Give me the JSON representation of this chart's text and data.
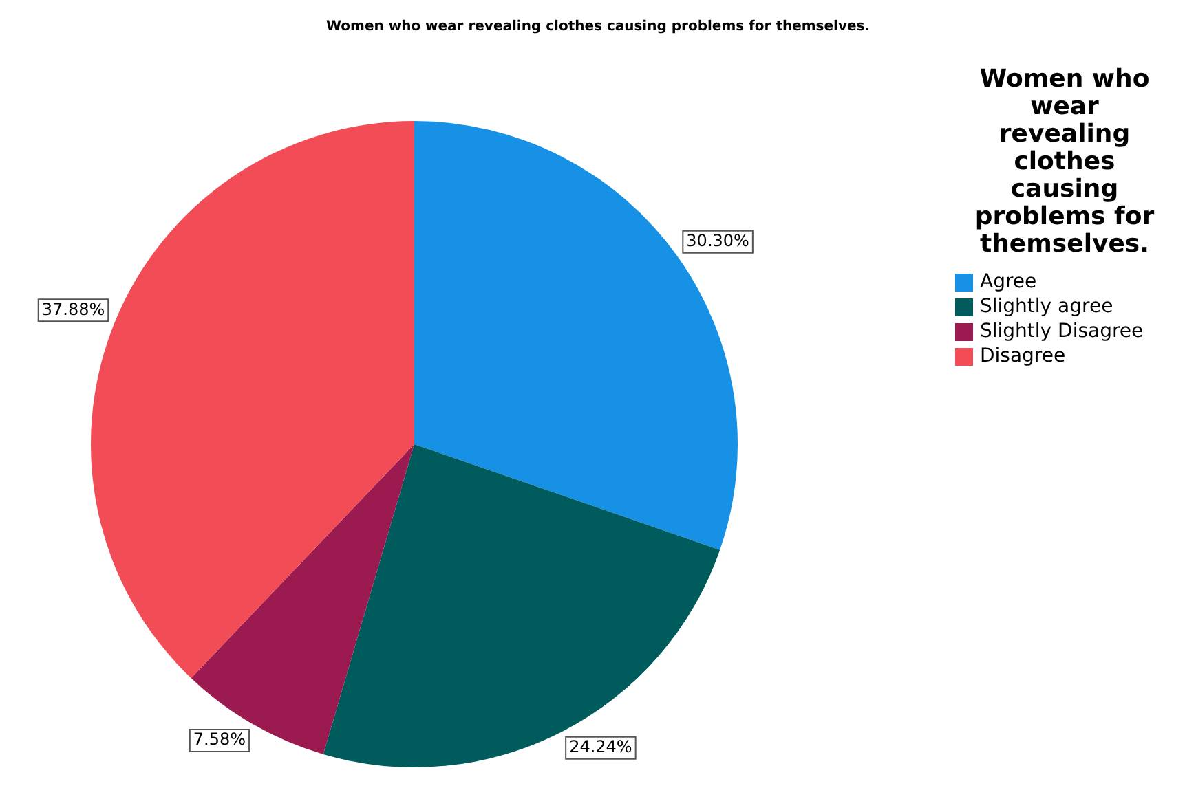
{
  "chart_data": {
    "type": "pie",
    "title": "Women who wear revealing clothes causing problems for themselves.",
    "legend_title": "Women who wear revealing clothes causing problems for themselves.",
    "legend": "top right",
    "categories": [
      "Agree",
      "Slightly agree",
      "Slightly Disagree",
      "Disagree"
    ],
    "values": [
      30.3,
      24.24,
      7.58,
      37.88
    ],
    "value_labels": [
      "30.30%",
      "24.24%",
      "7.58%",
      "37.88%"
    ],
    "colors": [
      "#1691e6",
      "#005c5c",
      "#9b1a4f",
      "#f24d57"
    ]
  }
}
